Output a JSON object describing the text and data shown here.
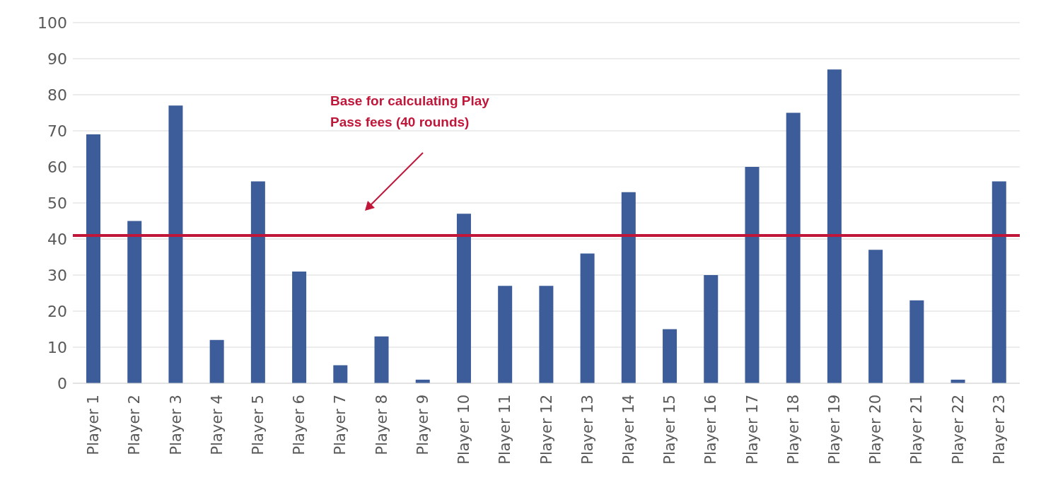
{
  "chart_data": {
    "type": "bar",
    "categories": [
      "Player 1",
      "Player 2",
      "Player 3",
      "Player 4",
      "Player 5",
      "Player 6",
      "Player 7",
      "Player 8",
      "Player 9",
      "Player 10",
      "Player 11",
      "Player 12",
      "Player 13",
      "Player 14",
      "Player 15",
      "Player 16",
      "Player 17",
      "Player 18",
      "Player 19",
      "Player 20",
      "Player 21",
      "Player 22",
      "Player 23"
    ],
    "values": [
      69,
      45,
      77,
      12,
      56,
      31,
      5,
      13,
      1,
      47,
      27,
      27,
      36,
      53,
      15,
      30,
      60,
      75,
      87,
      37,
      23,
      1,
      56
    ],
    "color": "#3d5c9a",
    "ylim": [
      0,
      100
    ],
    "yticks": [
      0,
      10,
      20,
      30,
      40,
      50,
      60,
      70,
      80,
      90,
      100
    ],
    "grid": "y",
    "legend": false,
    "ref_lines": [
      {
        "axis": "y",
        "value": 41,
        "color": "#c0163a",
        "line_style": "solid"
      }
    ],
    "annotations": [
      "Base for calculating Play Pass fees (40 rounds)"
    ]
  }
}
